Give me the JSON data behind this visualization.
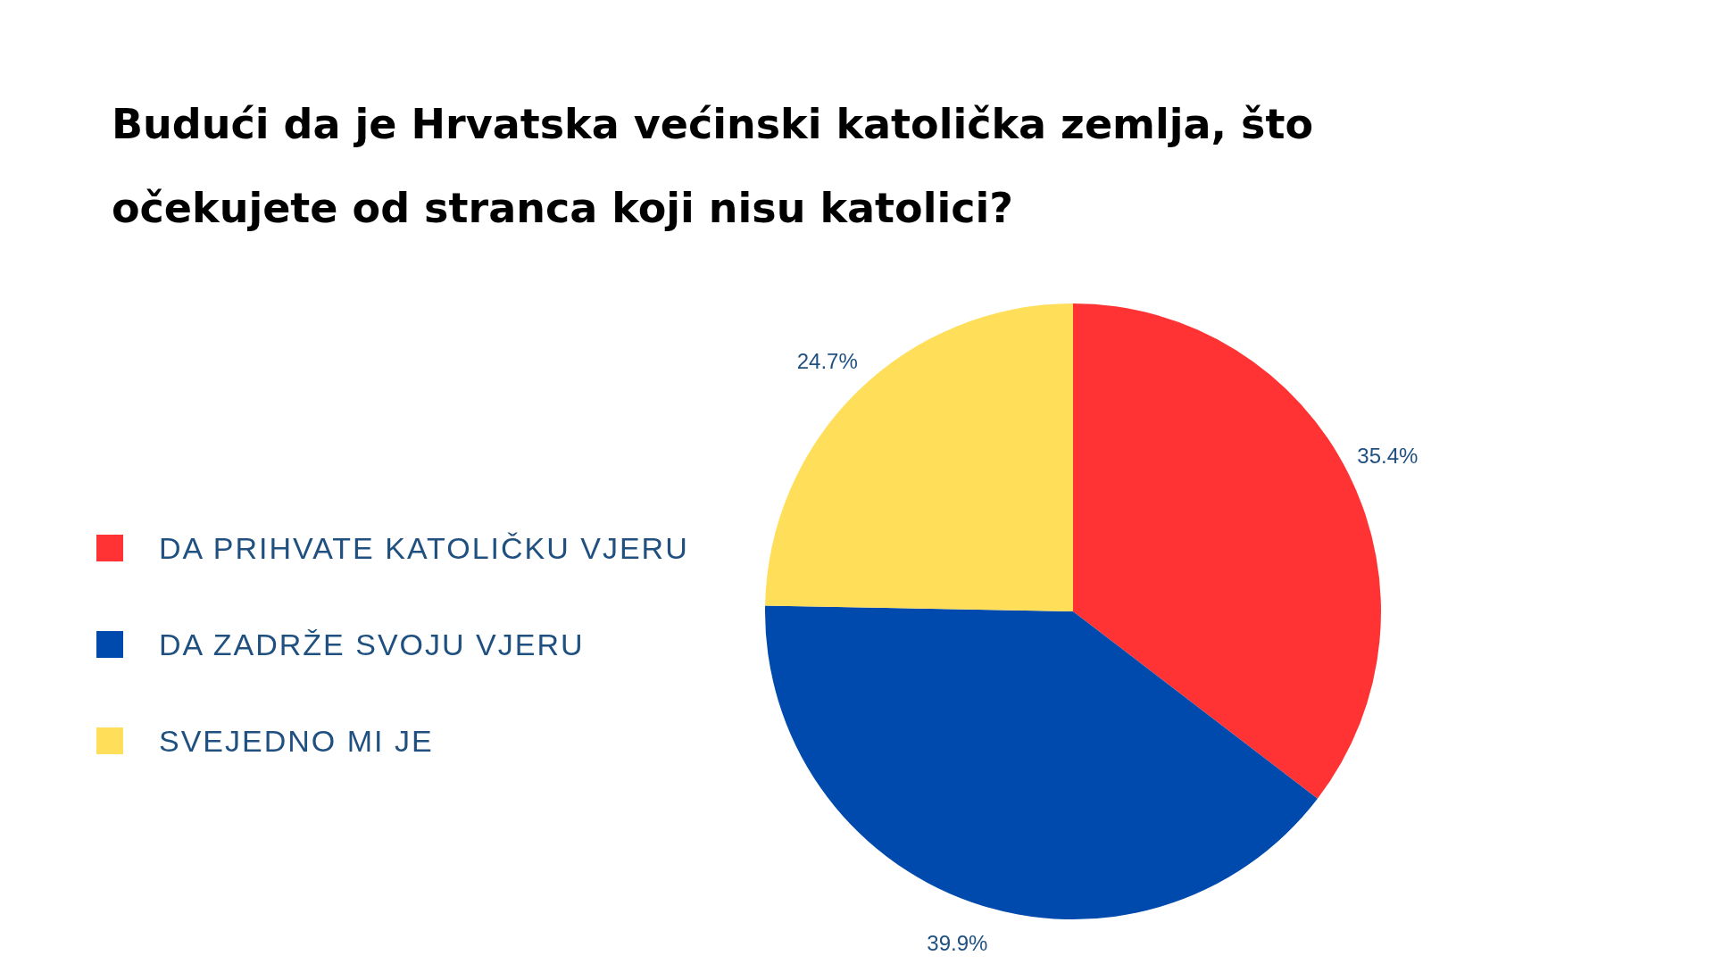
{
  "chart_data": {
    "type": "pie",
    "title": "Budući da je Hrvatska većinski katolička zemlja, što očekujete od stranca koji nisu katolici?",
    "categories": [
      "DA PRIHVATE KATOLIČKU VJERU",
      "DA ZADRŽE SVOJU VJERU",
      "SVEJEDNO MI JE"
    ],
    "values": [
      35.4,
      39.9,
      24.7
    ],
    "value_labels": [
      "35.4%",
      "39.9%",
      "24.7%"
    ],
    "colors": [
      "#ff3333",
      "#004aad",
      "#ffde59"
    ],
    "legend": "left"
  }
}
